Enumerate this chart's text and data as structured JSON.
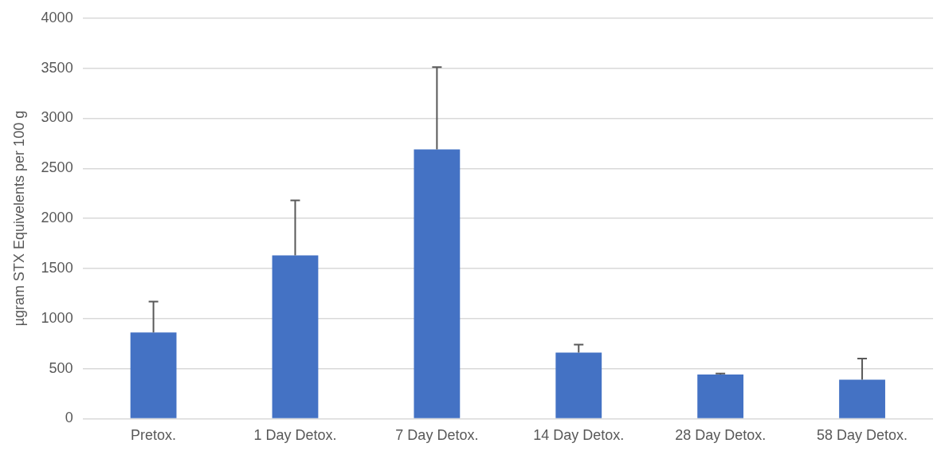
{
  "chart_data": {
    "type": "bar",
    "ylabel": "µgram STX Equivelents per 100 g",
    "categories": [
      "Pretox.",
      "1 Day Detox.",
      "7 Day Detox.",
      "14 Day Detox.",
      "28 Day Detox.",
      "58 Day Detox."
    ],
    "values": [
      860,
      1630,
      2690,
      660,
      440,
      390
    ],
    "errors": [
      [
        860,
        1170
      ],
      [
        1630,
        2180
      ],
      [
        2690,
        3510
      ],
      [
        660,
        740
      ],
      [
        440,
        450
      ],
      [
        390,
        600
      ]
    ],
    "color": "#4472c4",
    "ylim": [
      0,
      4000
    ],
    "yticks": [
      0,
      500,
      1000,
      1500,
      2000,
      2500,
      3000,
      3500,
      4000
    ],
    "grid": "y",
    "legend": false
  }
}
